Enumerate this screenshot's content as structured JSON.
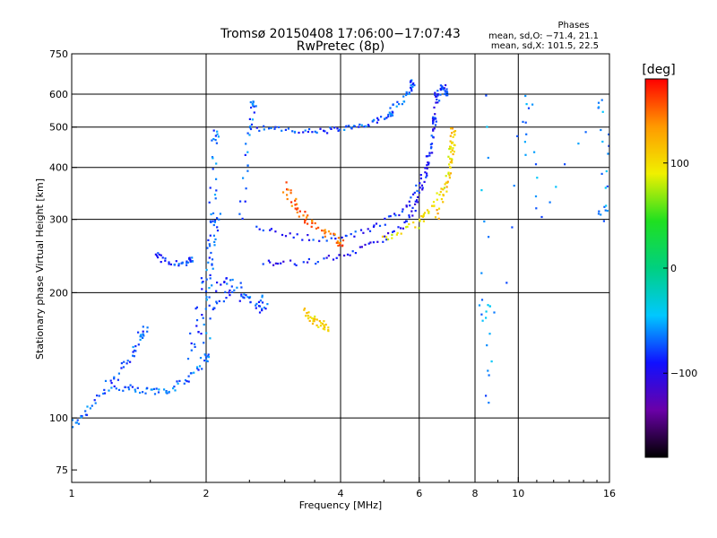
{
  "header": {
    "title": "Tromsø 20150408 17:06:00−17:07:43",
    "subtitle": "RwPretec (8p)"
  },
  "stats": {
    "heading": "Phases",
    "line1": "mean, sd,O: −71.4, 21.1",
    "line2": "mean, sd,X: 101.5, 22.5"
  },
  "colorbar": {
    "unit_label": "[deg]",
    "ticks": [
      {
        "value": 100,
        "label": "100"
      },
      {
        "value": 0,
        "label": "0"
      },
      {
        "value": -100,
        "label": "−100"
      }
    ],
    "range": [
      -180,
      180
    ],
    "colormap": [
      "#000000",
      "#6a00a8",
      "#1010ff",
      "#00c8ff",
      "#00d080",
      "#20e020",
      "#f0f000",
      "#ff9900",
      "#ff0000"
    ]
  },
  "chart_data": {
    "type": "scatter",
    "xlabel": "Frequency [MHz]",
    "ylabel": "Stationary phase Virtual Height [km]",
    "x_scale": "log",
    "y_scale": "log",
    "xlim": [
      1,
      16
    ],
    "ylim": [
      70,
      750
    ],
    "x_ticks": [
      {
        "value": 1,
        "label": "1"
      },
      {
        "value": 2,
        "label": "2"
      },
      {
        "value": 4,
        "label": "4"
      },
      {
        "value": 6,
        "label": "6"
      },
      {
        "value": 8,
        "label": "8"
      },
      {
        "value": 10,
        "label": "10"
      },
      {
        "value": 16,
        "label": "16"
      }
    ],
    "y_ticks": [
      {
        "value": 75,
        "label": "75"
      },
      {
        "value": 100,
        "label": "100"
      },
      {
        "value": 200,
        "label": "200"
      },
      {
        "value": 300,
        "label": "300"
      },
      {
        "value": 400,
        "label": "400"
      },
      {
        "value": 500,
        "label": "500"
      },
      {
        "value": 600,
        "label": "600"
      },
      {
        "value": 750,
        "label": "750"
      }
    ],
    "grid": true,
    "grid_x": [
      2,
      4,
      6,
      8,
      10
    ],
    "grid_y": [
      100,
      200,
      300,
      400,
      500,
      600
    ],
    "color_encoding": "phase_deg",
    "traces": [
      {
        "x": [
          1.0,
          1.05,
          1.1,
          1.2,
          1.3,
          1.4,
          1.5,
          1.6,
          1.7,
          1.8,
          1.9,
          2.0
        ],
        "y": [
          96,
          100,
          108,
          118,
          118,
          116,
          116,
          117,
          118,
          124,
          132,
          140
        ],
        "phase": -70,
        "spread": 0.03
      },
      {
        "x": [
          1.2,
          1.3,
          1.35,
          1.4,
          1.45
        ],
        "y": [
          120,
          130,
          140,
          152,
          162
        ],
        "phase": -75,
        "spread": 0.04
      },
      {
        "x": [
          1.55,
          1.6,
          1.7,
          1.8,
          1.85
        ],
        "y": [
          250,
          240,
          236,
          235,
          240
        ],
        "phase": -80,
        "spread": 0.02
      },
      {
        "x": [
          1.85,
          1.9,
          1.95,
          2.0,
          2.05,
          2.1
        ],
        "y": [
          140,
          160,
          190,
          220,
          260,
          300
        ],
        "phase": -75,
        "spread": 0.05
      },
      {
        "x": [
          2.0,
          2.02,
          2.04,
          2.06,
          2.08,
          2.1
        ],
        "y": [
          150,
          190,
          240,
          300,
          380,
          480
        ],
        "phase": -70,
        "spread": 0.04
      },
      {
        "x": [
          2.1,
          2.15,
          2.2,
          2.3,
          2.4,
          2.5,
          2.6,
          2.7
        ],
        "y": [
          180,
          200,
          210,
          210,
          200,
          195,
          190,
          185
        ],
        "phase": -75,
        "spread": 0.06
      },
      {
        "x": [
          2.4,
          2.45,
          2.5,
          2.55
        ],
        "y": [
          300,
          400,
          500,
          570
        ],
        "phase": -70,
        "spread": 0.03
      },
      {
        "x": [
          2.5,
          2.8,
          3.1,
          3.4,
          3.7,
          4.0,
          4.3,
          4.6,
          4.9,
          5.2
        ],
        "y": [
          500,
          495,
          490,
          488,
          490,
          495,
          500,
          505,
          520,
          540
        ],
        "phase": -75,
        "spread": 0.02
      },
      {
        "x": [
          5.2,
          5.5,
          5.7,
          5.8
        ],
        "y": [
          560,
          580,
          610,
          640
        ],
        "phase": -70,
        "spread": 0.02
      },
      {
        "x": [
          2.7,
          3.0,
          3.5,
          4.0,
          4.5,
          5.0,
          5.5,
          5.8,
          6.0,
          6.2,
          6.4,
          6.5,
          6.55
        ],
        "y": [
          238,
          235,
          238,
          245,
          255,
          270,
          290,
          310,
          340,
          380,
          440,
          520,
          600
        ],
        "phase": -95,
        "spread": 0.02
      },
      {
        "x": [
          2.6,
          3.0,
          3.5,
          4.0,
          4.5,
          5.0,
          5.5,
          5.8,
          6.1,
          6.3,
          6.5
        ],
        "y": [
          290,
          275,
          270,
          272,
          280,
          295,
          315,
          340,
          380,
          440,
          520
        ],
        "phase": -85,
        "spread": 0.02
      },
      {
        "x": [
          5.0,
          5.5,
          6.0,
          6.2,
          6.5,
          6.8,
          7.0,
          7.1
        ],
        "y": [
          270,
          280,
          295,
          310,
          330,
          360,
          400,
          450
        ],
        "phase": 95,
        "spread": 0.03
      },
      {
        "x": [
          6.6,
          6.8,
          7.0,
          7.1,
          7.15
        ],
        "y": [
          300,
          340,
          390,
          440,
          490
        ],
        "phase": 115,
        "spread": 0.03
      },
      {
        "x": [
          6.6,
          6.7,
          6.8,
          6.9
        ],
        "y": [
          580,
          620,
          630,
          600
        ],
        "phase": -80,
        "spread": 0.02
      },
      {
        "x": [
          3.0,
          3.1,
          3.2,
          3.3,
          3.4,
          3.6,
          3.8,
          4.0
        ],
        "y": [
          360,
          340,
          320,
          305,
          295,
          285,
          275,
          265
        ],
        "phase": 150,
        "spread": 0.03
      },
      {
        "x": [
          3.3,
          3.4,
          3.5,
          3.6,
          3.7
        ],
        "y": [
          180,
          175,
          170,
          168,
          165
        ],
        "phase": 105,
        "spread": 0.03
      },
      {
        "x": [
          8.4,
          8.4,
          8.4,
          8.4,
          10.5,
          10.5,
          11.0,
          15.5,
          15.5,
          15.5
        ],
        "y": [
          585,
          190,
          180,
          105,
          585,
          480,
          300,
          590,
          440,
          310
        ],
        "phase": -60,
        "spread": 0.06
      }
    ]
  }
}
